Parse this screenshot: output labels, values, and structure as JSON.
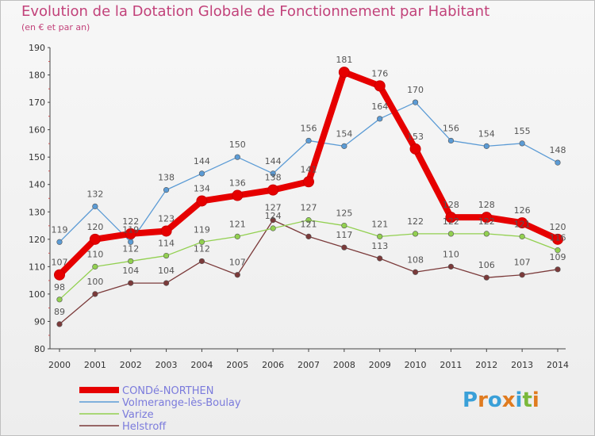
{
  "title": "Evolution de la Dotation Globale de Fonctionnement par Habitant",
  "subtitle": "(en € et par an)",
  "brand": [
    "P",
    "r",
    "o",
    "x",
    "i",
    "t",
    "i"
  ],
  "brand_colors": [
    "#3aa0d8",
    "#e07b1f",
    "#3aa0d8",
    "#e07b1f",
    "#3aa0d8",
    "#7ab83a",
    "#e07b1f"
  ],
  "chart_data": {
    "type": "line",
    "title": "Evolution de la Dotation Globale de Fonctionnement par Habitant",
    "subtitle": "(en € et par an)",
    "x": [
      "2000",
      "2001",
      "2002",
      "2003",
      "2004",
      "2005",
      "2006",
      "2007",
      "2008",
      "2009",
      "2010",
      "2011",
      "2012",
      "2013",
      "2014"
    ],
    "ylim": [
      80,
      190
    ],
    "yticks": [
      80,
      90,
      100,
      110,
      120,
      130,
      140,
      150,
      160,
      170,
      180,
      190
    ],
    "grid": false,
    "legend_position": "bottom-left",
    "series": [
      {
        "name": "CONDé-NORTHEN",
        "color": "#e60000",
        "values": [
          107,
          120,
          122,
          123,
          134,
          136,
          138,
          141,
          181,
          176,
          153,
          128,
          128,
          126,
          120
        ]
      },
      {
        "name": "Volmerange-lès-Boulay",
        "color": "#5b9bd5",
        "values": [
          119,
          132,
          119,
          138,
          144,
          150,
          144,
          156,
          154,
          164,
          170,
          156,
          154,
          155,
          148
        ]
      },
      {
        "name": "Varize",
        "color": "#92d050",
        "values": [
          98,
          110,
          112,
          114,
          119,
          121,
          124,
          127,
          125,
          121,
          122,
          122,
          122,
          121,
          116
        ]
      },
      {
        "name": "Helstroff",
        "color": "#7b3a3a",
        "values": [
          89,
          100,
          104,
          104,
          112,
          107,
          127,
          121,
          117,
          113,
          108,
          110,
          106,
          107,
          109
        ]
      }
    ]
  }
}
